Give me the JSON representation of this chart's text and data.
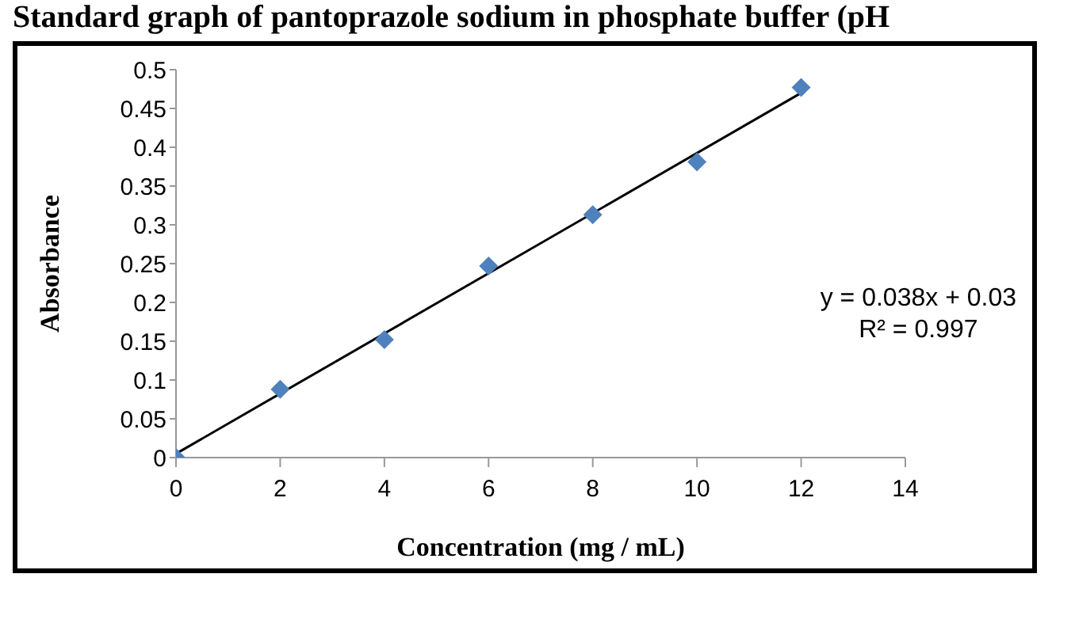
{
  "chart_data": {
    "type": "scatter",
    "title": "Standard graph of pantoprazole sodium in phosphate buffer (pH",
    "xlabel": "Concentration (mg / mL)",
    "ylabel": "Absorbance",
    "x": [
      0,
      2,
      4,
      6,
      8,
      10,
      12
    ],
    "series": [
      {
        "type": "line",
        "color": "#000000",
        "x": [
          0,
          12
        ],
        "values": [
          0.005,
          0.47
        ],
        "marker": "none"
      },
      {
        "color": "#4f81bd",
        "values": [
          0,
          0.088,
          0.152,
          0.247,
          0.313,
          0.381,
          0.477
        ],
        "marker": "diamond"
      }
    ],
    "annotations": [
      "y = 0.038x + 0.03",
      "R² = 0.997"
    ],
    "xlim": [
      0,
      14
    ],
    "xticks": [
      0,
      2,
      4,
      6,
      8,
      10,
      12,
      14
    ],
    "ylim": [
      0,
      0.5
    ],
    "yticks": [
      0,
      0.05,
      0.1,
      0.15,
      0.2,
      0.25,
      0.3,
      0.35,
      0.4,
      0.45,
      0.5
    ],
    "grid": false,
    "legend": false
  }
}
